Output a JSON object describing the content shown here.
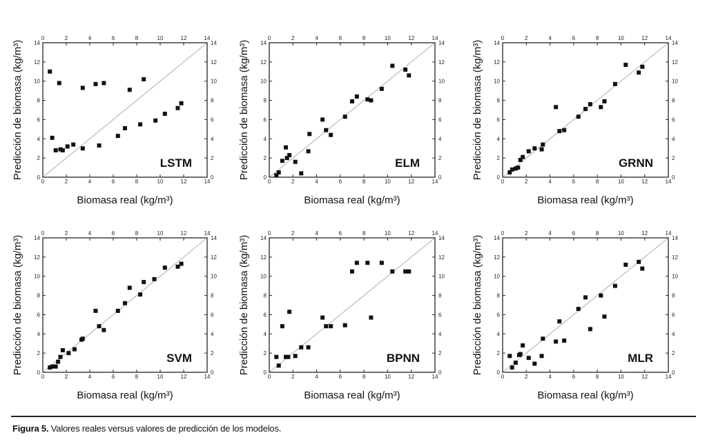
{
  "caption": {
    "label": "Figura 5.",
    "text": " Valores reales versus valores de predicción de los modelos."
  },
  "colors": {
    "marker": "#111111",
    "diagonal": "#c8aaaa",
    "axis": "#222222"
  },
  "chart_data": [
    {
      "type": "scatter",
      "title": "LSTM",
      "xlabel": "Biomasa real (kg/m³)",
      "ylabel": "Predicción de biomasa (kg/m³)",
      "xlim": [
        0,
        14
      ],
      "ylim": [
        0,
        14
      ],
      "ticks": [
        0,
        2,
        4,
        6,
        8,
        10,
        12,
        14
      ],
      "diagonal": true,
      "grid": false,
      "points": [
        [
          0.6,
          11.0
        ],
        [
          0.8,
          4.1
        ],
        [
          1.1,
          2.8
        ],
        [
          1.4,
          9.8
        ],
        [
          1.5,
          2.9
        ],
        [
          1.7,
          2.8
        ],
        [
          2.1,
          3.2
        ],
        [
          2.6,
          3.4
        ],
        [
          3.4,
          9.3
        ],
        [
          3.4,
          3.0
        ],
        [
          4.5,
          9.7
        ],
        [
          4.8,
          3.3
        ],
        [
          5.2,
          9.8
        ],
        [
          6.4,
          4.3
        ],
        [
          7.0,
          5.1
        ],
        [
          7.4,
          9.1
        ],
        [
          8.3,
          5.5
        ],
        [
          8.6,
          10.2
        ],
        [
          9.6,
          5.9
        ],
        [
          10.4,
          6.6
        ],
        [
          11.5,
          7.2
        ],
        [
          11.8,
          7.7
        ]
      ]
    },
    {
      "type": "scatter",
      "title": "ELM",
      "xlabel": "Biomasa real (kg/m³)",
      "ylabel": "Predicción de biomasa (kg/m³)",
      "xlim": [
        0,
        14
      ],
      "ylim": [
        0,
        14
      ],
      "ticks": [
        0,
        2,
        4,
        6,
        8,
        10,
        12,
        14
      ],
      "diagonal": true,
      "grid": false,
      "points": [
        [
          0.6,
          0.2
        ],
        [
          0.8,
          0.5
        ],
        [
          1.1,
          1.7
        ],
        [
          1.4,
          3.1
        ],
        [
          1.5,
          2.0
        ],
        [
          1.7,
          2.3
        ],
        [
          2.2,
          1.6
        ],
        [
          2.7,
          0.4
        ],
        [
          3.3,
          2.7
        ],
        [
          3.4,
          4.5
        ],
        [
          4.5,
          6.0
        ],
        [
          4.8,
          4.9
        ],
        [
          5.2,
          4.4
        ],
        [
          6.4,
          6.3
        ],
        [
          7.0,
          7.9
        ],
        [
          7.4,
          8.4
        ],
        [
          8.3,
          8.1
        ],
        [
          8.6,
          8.0
        ],
        [
          9.5,
          9.2
        ],
        [
          10.4,
          11.6
        ],
        [
          11.5,
          11.2
        ],
        [
          11.8,
          10.6
        ]
      ]
    },
    {
      "type": "scatter",
      "title": "GRNN",
      "xlabel": "Biomasa real (kg/m³)",
      "ylabel": "Predicción de biomasa (kg/m³)",
      "xlim": [
        0,
        14
      ],
      "ylim": [
        0,
        14
      ],
      "ticks": [
        0,
        2,
        4,
        6,
        8,
        10,
        12,
        14
      ],
      "diagonal": true,
      "grid": false,
      "points": [
        [
          0.6,
          0.5
        ],
        [
          0.8,
          0.8
        ],
        [
          1.1,
          0.9
        ],
        [
          1.3,
          1.0
        ],
        [
          1.5,
          1.8
        ],
        [
          1.7,
          2.1
        ],
        [
          2.2,
          2.7
        ],
        [
          2.7,
          3.0
        ],
        [
          3.3,
          2.9
        ],
        [
          3.4,
          3.4
        ],
        [
          4.5,
          7.3
        ],
        [
          4.8,
          4.8
        ],
        [
          5.2,
          4.9
        ],
        [
          6.4,
          6.3
        ],
        [
          7.0,
          7.1
        ],
        [
          7.4,
          7.6
        ],
        [
          8.3,
          7.3
        ],
        [
          8.6,
          7.9
        ],
        [
          9.5,
          9.7
        ],
        [
          10.4,
          11.7
        ],
        [
          11.5,
          10.9
        ],
        [
          11.8,
          11.5
        ]
      ]
    },
    {
      "type": "scatter",
      "title": "SVM",
      "xlabel": "Biomasa real (kg/m³)",
      "ylabel": "Predicción de biomasa (kg/m³)",
      "xlim": [
        0,
        14
      ],
      "ylim": [
        0,
        14
      ],
      "ticks": [
        0,
        2,
        4,
        6,
        8,
        10,
        12,
        14
      ],
      "diagonal": true,
      "grid": false,
      "points": [
        [
          0.6,
          0.5
        ],
        [
          0.8,
          0.6
        ],
        [
          1.1,
          0.6
        ],
        [
          1.3,
          1.1
        ],
        [
          1.5,
          1.6
        ],
        [
          1.7,
          2.3
        ],
        [
          2.2,
          2.0
        ],
        [
          2.7,
          2.4
        ],
        [
          3.3,
          3.4
        ],
        [
          3.4,
          3.5
        ],
        [
          4.5,
          6.4
        ],
        [
          4.8,
          4.8
        ],
        [
          5.2,
          4.4
        ],
        [
          6.4,
          6.4
        ],
        [
          7.0,
          7.2
        ],
        [
          7.4,
          8.8
        ],
        [
          8.3,
          8.1
        ],
        [
          8.6,
          9.4
        ],
        [
          9.5,
          9.7
        ],
        [
          10.4,
          10.9
        ],
        [
          11.5,
          11.0
        ],
        [
          11.8,
          11.3
        ]
      ]
    },
    {
      "type": "scatter",
      "title": "BPNN",
      "xlabel": "Biomasa real (kg/m³)",
      "ylabel": "Predicción de biomasa (kg/m³)",
      "xlim": [
        0,
        14
      ],
      "ylim": [
        0,
        14
      ],
      "ticks": [
        0,
        2,
        4,
        6,
        8,
        10,
        12,
        14
      ],
      "diagonal": true,
      "grid": false,
      "points": [
        [
          0.6,
          1.6
        ],
        [
          0.8,
          0.7
        ],
        [
          1.1,
          4.8
        ],
        [
          1.4,
          1.6
        ],
        [
          1.6,
          1.6
        ],
        [
          1.7,
          6.3
        ],
        [
          2.2,
          1.7
        ],
        [
          2.7,
          2.6
        ],
        [
          3.3,
          2.6
        ],
        [
          4.5,
          5.7
        ],
        [
          4.8,
          4.8
        ],
        [
          5.2,
          4.8
        ],
        [
          6.4,
          4.9
        ],
        [
          7.0,
          10.5
        ],
        [
          7.4,
          11.4
        ],
        [
          8.3,
          11.4
        ],
        [
          8.6,
          5.7
        ],
        [
          9.5,
          11.4
        ],
        [
          10.4,
          10.5
        ],
        [
          11.5,
          10.5
        ],
        [
          11.8,
          10.5
        ]
      ]
    },
    {
      "type": "scatter",
      "title": "MLR",
      "xlabel": "Biomasa real (kg/m³)",
      "ylabel": "Predicción de biomasa (kg/m³)",
      "xlim": [
        0,
        14
      ],
      "ylim": [
        0,
        14
      ],
      "ticks": [
        0,
        2,
        4,
        6,
        8,
        10,
        12,
        14
      ],
      "diagonal": true,
      "grid": false,
      "points": [
        [
          0.6,
          1.7
        ],
        [
          0.8,
          0.5
        ],
        [
          1.1,
          1.0
        ],
        [
          1.4,
          1.8
        ],
        [
          1.5,
          1.9
        ],
        [
          1.7,
          2.8
        ],
        [
          2.2,
          1.5
        ],
        [
          2.7,
          0.9
        ],
        [
          3.3,
          1.7
        ],
        [
          3.4,
          3.5
        ],
        [
          4.5,
          3.2
        ],
        [
          4.8,
          5.3
        ],
        [
          5.2,
          3.3
        ],
        [
          6.4,
          6.6
        ],
        [
          7.0,
          7.8
        ],
        [
          7.4,
          4.5
        ],
        [
          8.3,
          8.0
        ],
        [
          8.6,
          5.8
        ],
        [
          9.5,
          9.0
        ],
        [
          10.4,
          11.2
        ],
        [
          11.5,
          11.5
        ],
        [
          11.8,
          10.8
        ]
      ]
    }
  ]
}
